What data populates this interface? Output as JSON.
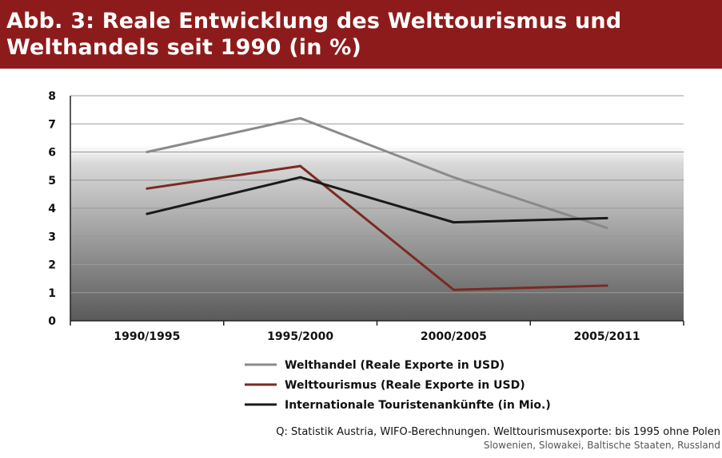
{
  "title": "Abb. 3: Reale Entwicklung des Welttourismus und Welthandels seit 1990 (in %)",
  "colors": {
    "header_bg": "#8e1b1b",
    "welthandel": "#8a8a8a",
    "welttourismus": "#7a2a22",
    "touristenankuenfte": "#1a1a1a"
  },
  "chart_data": {
    "type": "line",
    "categories": [
      "1990/1995",
      "1995/2000",
      "2000/2005",
      "2005/2011"
    ],
    "ylim": [
      0,
      8
    ],
    "yticks": [
      "0",
      "1",
      "2",
      "3",
      "4",
      "5",
      "6",
      "7",
      "8"
    ],
    "grid": true,
    "legend_position": "bottom",
    "series": [
      {
        "name": "Welthandel (Reale Exporte in USD)",
        "values": [
          6.0,
          7.2,
          5.1,
          3.3
        ]
      },
      {
        "name": "Welttourismus (Reale Exporte in USD)",
        "values": [
          4.7,
          5.5,
          1.1,
          1.25
        ]
      },
      {
        "name": "Internationale Touristenankünfte (in Mio.)",
        "values": [
          3.8,
          5.1,
          3.5,
          3.65
        ]
      }
    ]
  },
  "source": {
    "line1": "Q: Statistik Austria, WIFO-Berechnungen. Welttourismusexporte: bis 1995 ohne Polen",
    "line2": "Slowenien, Slowakei, Baltische Staaten, Russland"
  }
}
